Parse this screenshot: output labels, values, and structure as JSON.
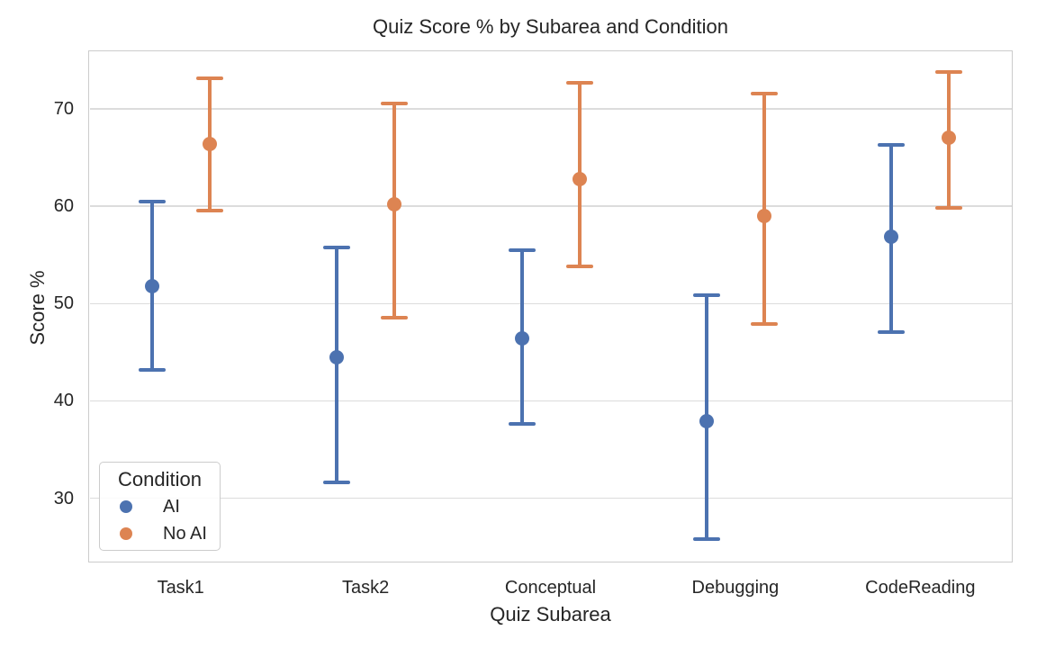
{
  "chart": {
    "title": "Quiz Score % by Subarea and Condition",
    "xlabel": "Quiz Subarea",
    "ylabel": "Score %",
    "legend": {
      "title": "Condition"
    }
  },
  "chart_data": {
    "type": "scatter",
    "subtype": "point-plot-with-error-bars",
    "title": "Quiz Score % by Subarea and Condition",
    "xlabel": "Quiz Subarea",
    "ylabel": "Score %",
    "categories": [
      "Task1",
      "Task2",
      "Conceptual",
      "Debugging",
      "CodeReading"
    ],
    "series": [
      {
        "name": "AI",
        "color": "#4C72B0",
        "means": [
          51.8,
          44.5,
          46.4,
          37.9,
          56.9
        ],
        "ci_low": [
          43.2,
          31.6,
          37.6,
          25.8,
          47.1
        ],
        "ci_high": [
          60.5,
          55.8,
          55.5,
          50.9,
          66.3
        ]
      },
      {
        "name": "No AI",
        "color": "#DD8452",
        "means": [
          66.4,
          60.2,
          62.8,
          59.0,
          67.0
        ],
        "ci_low": [
          59.5,
          48.5,
          53.8,
          47.9,
          59.8
        ],
        "ci_high": [
          73.1,
          70.5,
          72.7,
          71.6,
          73.8
        ]
      }
    ],
    "yticks": [
      30,
      40,
      50,
      60,
      70
    ],
    "ylim": [
      23.4,
      76.0
    ],
    "grid": "horizontal",
    "legend_position": "lower left",
    "legend_title": "Condition"
  }
}
